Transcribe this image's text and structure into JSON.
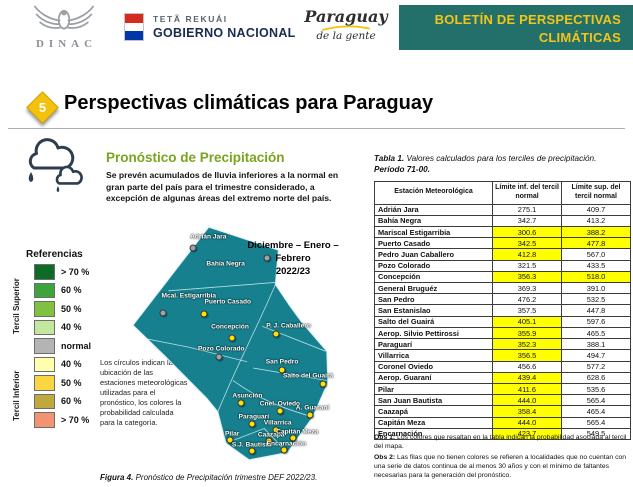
{
  "header": {
    "logo_text": "DINAC",
    "gov_line1": "TETÃ REKUÁI",
    "gov_line2": "GOBIERNO NACIONAL",
    "script_line1": "Paraguay",
    "script_line2": "de la gente",
    "banner_line1": "BOLETÍN DE PERSPECTIVAS",
    "banner_line2": "CLIMÁTICAS"
  },
  "title": {
    "number": "5",
    "text": "Perspectivas climáticas para Paraguay"
  },
  "forecast": {
    "heading": "Pronóstico de Precipitación",
    "summary": "Se prevén acumulados de lluvia inferiores a la normal en gran parte del país para el trimestre considerado, a excepción de algunas áreas del extremo norte del país.",
    "stations_note": "Los círculos indican la ubicación de las estaciones meteorológicas utilizadas para el pronóstico, los colores la probabilidad calculada para la categoría.",
    "figure_caption_prefix": "Figura 4.",
    "figure_caption": " Pronóstico de Precipitación trimestre DEF 2022/23."
  },
  "legend": {
    "title": "Referencias",
    "upper_label": "Tercil Superior",
    "lower_label": "Tercil Inferior",
    "items": [
      {
        "label": "> 70 %",
        "color": "#0e6b27"
      },
      {
        "label": "60 %",
        "color": "#3fa33c"
      },
      {
        "label": "50 %",
        "color": "#7fc241"
      },
      {
        "label": "40 %",
        "color": "#c4e79e"
      },
      {
        "label": "normal",
        "color": "#b4b4b4"
      },
      {
        "label": "40 %",
        "color": "#ffffae"
      },
      {
        "label": "50 %",
        "color": "#fad741"
      },
      {
        "label": "60 %",
        "color": "#bfa83d"
      },
      {
        "label": "> 70 %",
        "color": "#f29472"
      }
    ]
  },
  "map": {
    "period_line1": "Diciembre – Enero – Febrero",
    "period_line2": "2022/23",
    "dot_colors": {
      "yellow": "#ffe200",
      "gray": "#9fa3a7"
    },
    "stations": [
      {
        "name": "Adrián Jara",
        "cat": "gray",
        "dot": [
          30,
          10
        ],
        "label": [
          37,
          5.5
        ]
      },
      {
        "name": "Bahía Negra",
        "cat": "gray",
        "dot": [
          64,
          14
        ],
        "label": [
          45,
          16.5
        ]
      },
      {
        "name": "Mcal. Estigarribia",
        "cat": "gray",
        "dot": [
          16,
          37
        ],
        "label": [
          28,
          30
        ]
      },
      {
        "name": "Puerto Casado",
        "cat": "yellow",
        "dot": [
          35,
          37.5
        ],
        "label": [
          46,
          32.5
        ]
      },
      {
        "name": "Concepción",
        "cat": "yellow",
        "dot": [
          48,
          47.5
        ],
        "label": [
          47,
          43
        ]
      },
      {
        "name": "P. J. Caballero",
        "cat": "yellow",
        "dot": [
          68,
          46
        ],
        "label": [
          74,
          42.5
        ]
      },
      {
        "name": "Pozo Colorado",
        "cat": "gray",
        "dot": [
          42,
          55.5
        ],
        "label": [
          43,
          52
        ]
      },
      {
        "name": "San Pedro",
        "cat": "yellow",
        "dot": [
          71,
          61
        ],
        "label": [
          71,
          57.5
        ]
      },
      {
        "name": "Salto del Guairá",
        "cat": "yellow",
        "dot": [
          90,
          66.5
        ],
        "label": [
          83,
          63.5
        ]
      },
      {
        "name": "Asunción",
        "cat": "yellow",
        "dot": [
          52,
          74.5
        ],
        "label": [
          55,
          71.5
        ]
      },
      {
        "name": "Cnel. Oviedo",
        "cat": "yellow",
        "dot": [
          70,
          78
        ],
        "label": [
          70,
          75
        ]
      },
      {
        "name": "A. Guaraní",
        "cat": "yellow",
        "dot": [
          84,
          79.5
        ],
        "label": [
          85,
          76.5
        ]
      },
      {
        "name": "Paraguarí",
        "cat": "yellow",
        "dot": [
          57,
          83.5
        ],
        "label": [
          58,
          80.5
        ]
      },
      {
        "name": "Villarrica",
        "cat": "yellow",
        "dot": [
          68,
          86
        ],
        "label": [
          69,
          83
        ]
      },
      {
        "name": "Caazapá",
        "cat": "yellow",
        "dot": [
          65,
          90.5
        ],
        "label": [
          66,
          88
        ]
      },
      {
        "name": "Capitán Meza",
        "cat": "yellow",
        "dot": [
          76,
          89
        ],
        "label": [
          78,
          86.5
        ]
      },
      {
        "name": "Pilar",
        "cat": "yellow",
        "dot": [
          47,
          90
        ],
        "label": [
          48,
          87.5
        ]
      },
      {
        "name": "S.J. Bautista",
        "cat": "yellow",
        "dot": [
          57,
          94.5
        ],
        "label": [
          57,
          92
        ]
      },
      {
        "name": "Encarnación",
        "cat": "yellow",
        "dot": [
          72,
          94
        ],
        "label": [
          73,
          91.5
        ]
      }
    ]
  },
  "table": {
    "title_prefix": "Tabla 1.",
    "title_rest": " Valores calculados para los terciles de precipitación.",
    "title_line2": "Período 71-00.",
    "col_station": "Estación Meteorológica",
    "col_inf": "Límite inf. del tercil normal",
    "col_sup": "Límite sup. del tercil normal",
    "highlight_color": "#ffff00",
    "rows": [
      {
        "station": "Adrián Jara",
        "inf": "275.1",
        "sup": "409.7",
        "hi": false,
        "hs": false
      },
      {
        "station": "Bahía Negra",
        "inf": "342.7",
        "sup": "413.2",
        "hi": false,
        "hs": false
      },
      {
        "station": "Mariscal Estigarribia",
        "inf": "300.6",
        "sup": "388.2",
        "hi": true,
        "hs": true
      },
      {
        "station": "Puerto Casado",
        "inf": "342.5",
        "sup": "477.8",
        "hi": true,
        "hs": true
      },
      {
        "station": "Pedro Juan Caballero",
        "inf": "412.8",
        "sup": "567.0",
        "hi": true,
        "hs": false
      },
      {
        "station": "Pozo Colorado",
        "inf": "321.5",
        "sup": "433.5",
        "hi": false,
        "hs": false
      },
      {
        "station": "Concepción",
        "inf": "356.3",
        "sup": "518.0",
        "hi": true,
        "hs": true
      },
      {
        "station": "General Bruguéz",
        "inf": "369.3",
        "sup": "391.0",
        "hi": false,
        "hs": false
      },
      {
        "station": "San Pedro",
        "inf": "476.2",
        "sup": "532.5",
        "hi": false,
        "hs": false
      },
      {
        "station": "San Estanislao",
        "inf": "357.5",
        "sup": "447.8",
        "hi": false,
        "hs": false
      },
      {
        "station": "Salto del Guairá",
        "inf": "405.1",
        "sup": "597.6",
        "hi": true,
        "hs": false
      },
      {
        "station": "Aerop. Silvio Pettirossi",
        "inf": "355.9",
        "sup": "465.5",
        "hi": true,
        "hs": false
      },
      {
        "station": "Paraguarí",
        "inf": "352.3",
        "sup": "388.1",
        "hi": true,
        "hs": false
      },
      {
        "station": "Villarrica",
        "inf": "356.5",
        "sup": "494.7",
        "hi": true,
        "hs": false
      },
      {
        "station": "Coronel Oviedo",
        "inf": "456.6",
        "sup": "577.2",
        "hi": false,
        "hs": false
      },
      {
        "station": "Aerop. Guaraní",
        "inf": "439.4",
        "sup": "628.6",
        "hi": true,
        "hs": false
      },
      {
        "station": "Pilar",
        "inf": "411.6",
        "sup": "535.6",
        "hi": true,
        "hs": false
      },
      {
        "station": "San Juan Bautista",
        "inf": "444.0",
        "sup": "565.4",
        "hi": true,
        "hs": false
      },
      {
        "station": "Caazapá",
        "inf": "358.4",
        "sup": "465.4",
        "hi": true,
        "hs": false
      },
      {
        "station": "Capitán Meza",
        "inf": "444.0",
        "sup": "565.4",
        "hi": true,
        "hs": false
      },
      {
        "station": "Encarnación",
        "inf": "423.7",
        "sup": "549.5",
        "hi": true,
        "hs": false
      }
    ]
  },
  "notes": {
    "obs1_label": "Obs 1:",
    "obs1_text": "Los colores que resaltan en la tabla indican la probabilidad asociada al tercil del mapa.",
    "obs2_label": "Obs 2:",
    "obs2_text": "Las filas que no tienen colores se refieren a localidades que no cuentan con una serie de datos continua de al menos 30 años y con el mínimo de faltantes necesarias para la generación del pronóstico."
  },
  "colors": {
    "banner_bg": "#23706b",
    "banner_text": "#f3c517",
    "map_fill": "#16808e",
    "heading_green": "#7aa41d",
    "diamond_yellow": "#f4c20d"
  }
}
